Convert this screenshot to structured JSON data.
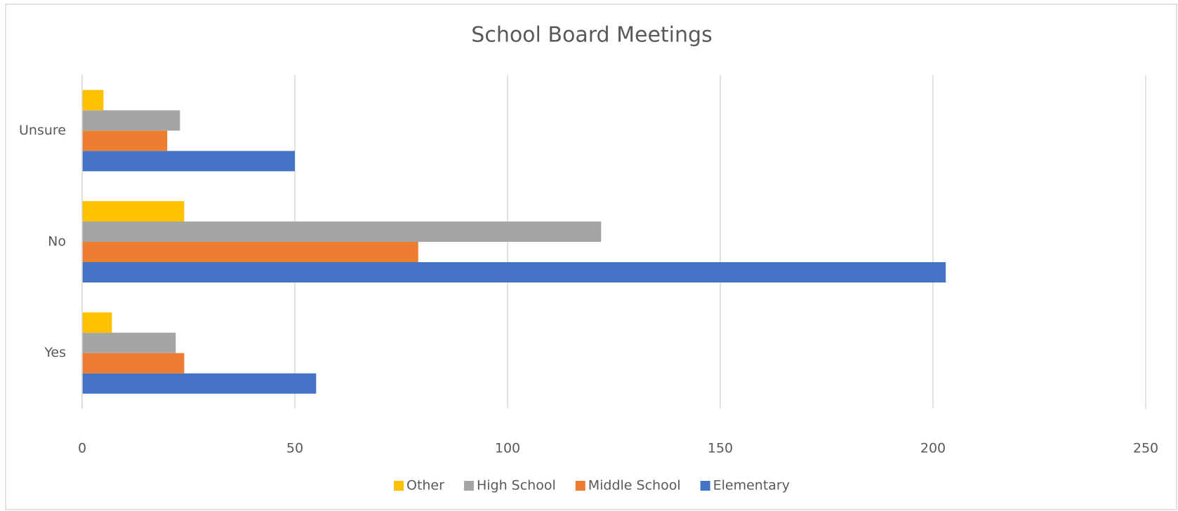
{
  "chart_data": {
    "type": "hbar",
    "title": "School Board Meetings",
    "categories": [
      "Yes",
      "No",
      "Unsure"
    ],
    "series": [
      {
        "name": "Elementary",
        "color": "#4472c4",
        "values": [
          55,
          203,
          50
        ]
      },
      {
        "name": "Middle School",
        "color": "#ed7d31",
        "values": [
          24,
          79,
          20
        ]
      },
      {
        "name": "High School",
        "color": "#a5a5a5",
        "values": [
          22,
          122,
          23
        ]
      },
      {
        "name": "Other",
        "color": "#ffc000",
        "values": [
          7,
          24,
          5
        ]
      }
    ],
    "xlim": [
      0,
      250
    ],
    "xticks": [
      0,
      50,
      100,
      150,
      200,
      250
    ],
    "grid": true,
    "legend": "bottom"
  }
}
